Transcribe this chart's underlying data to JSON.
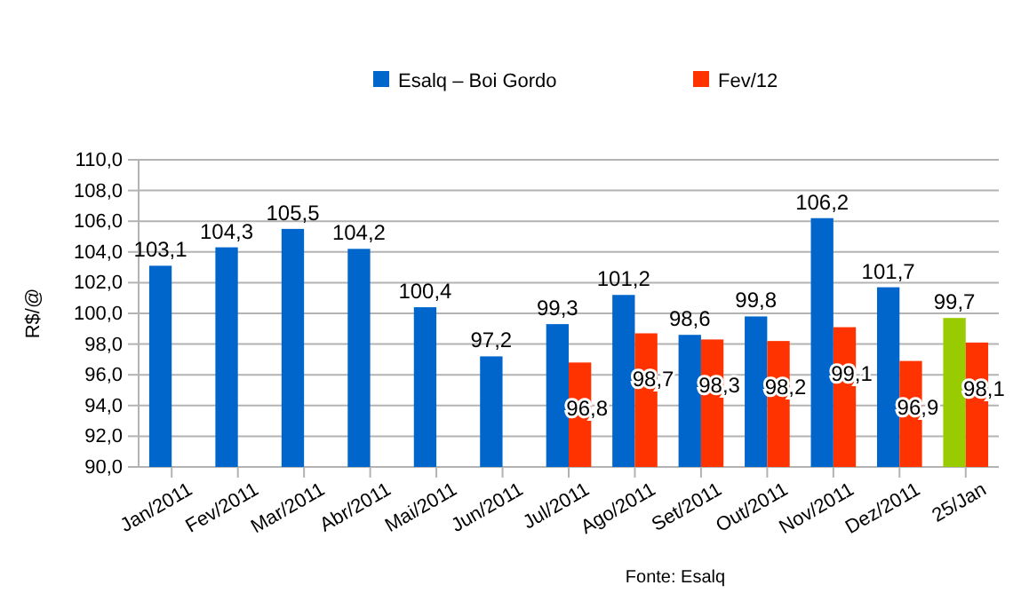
{
  "chart_data": {
    "type": "bar",
    "ylabel": "R$/@",
    "categories": [
      "Jan/2011",
      "Fev/2011",
      "Mar/2011",
      "Abr/2011",
      "Mai/2011",
      "Jun/2011",
      "Jul/2011",
      "Ago/2011",
      "Set/2011",
      "Out/2011",
      "Nov/2011",
      "Dez/2011",
      "25/Jan"
    ],
    "series": [
      {
        "name": "Esalq – Boi Gordo",
        "color": "#0066cc",
        "colors": [
          "#0066cc",
          "#0066cc",
          "#0066cc",
          "#0066cc",
          "#0066cc",
          "#0066cc",
          "#0066cc",
          "#0066cc",
          "#0066cc",
          "#0066cc",
          "#0066cc",
          "#0066cc",
          "#99cc00"
        ],
        "values": [
          103.1,
          104.3,
          105.5,
          104.2,
          100.4,
          97.2,
          99.3,
          101.2,
          98.6,
          99.8,
          106.2,
          101.7,
          99.7
        ],
        "value_labels": [
          "103,1",
          "104,3",
          "105,5",
          "104,2",
          "100,4",
          "97,2",
          "99,3",
          "101,2",
          "98,6",
          "99,8",
          "106,2",
          "101,7",
          "99,7"
        ]
      },
      {
        "name": "Fev/12",
        "color": "#ff3300",
        "values": [
          null,
          null,
          null,
          null,
          null,
          null,
          96.8,
          98.7,
          98.3,
          98.2,
          99.1,
          96.9,
          98.1
        ],
        "value_labels": [
          null,
          null,
          null,
          null,
          null,
          null,
          "96,8",
          "98,7",
          "98,3",
          "98,2",
          "99,1",
          "96,9",
          "98,1"
        ]
      }
    ],
    "ylim": [
      90,
      110
    ],
    "yticks": [
      {
        "value": 90,
        "label": "90,0"
      },
      {
        "value": 92,
        "label": "92,0"
      },
      {
        "value": 94,
        "label": "94,0"
      },
      {
        "value": 96,
        "label": "96,0"
      },
      {
        "value": 98,
        "label": "98,0"
      },
      {
        "value": 100,
        "label": "100,0"
      },
      {
        "value": 102,
        "label": "102,0"
      },
      {
        "value": 104,
        "label": "104,0"
      },
      {
        "value": 106,
        "label": "106,0"
      },
      {
        "value": 108,
        "label": "108,0"
      },
      {
        "value": 110,
        "label": "110,0"
      }
    ],
    "grid": "y",
    "legend": "top",
    "annotations": [
      "Fonte: Esalq"
    ]
  }
}
